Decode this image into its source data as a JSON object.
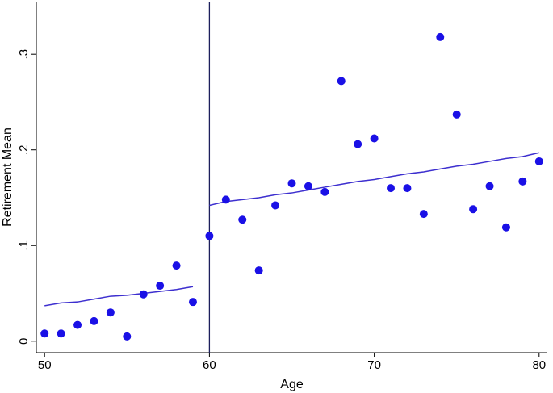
{
  "chart_data": {
    "type": "scatter",
    "xlabel": "Age",
    "ylabel": "Retirement Mean",
    "xlim": [
      49.5,
      80.5
    ],
    "ylim": [
      -0.012,
      0.355
    ],
    "xticks": [
      50,
      60,
      70,
      80
    ],
    "xtick_labels": [
      "50",
      "60",
      "70",
      "80"
    ],
    "yticks": [
      0,
      0.1,
      0.2,
      0.3
    ],
    "ytick_labels": [
      "0",
      ".1",
      ".2",
      ".3"
    ],
    "grid": false,
    "cutoff_line_x": 60,
    "points": {
      "x": [
        50,
        51,
        52,
        53,
        54,
        55,
        56,
        57,
        58,
        59,
        60,
        61,
        62,
        63,
        64,
        65,
        66,
        67,
        68,
        69,
        70,
        71,
        72,
        73,
        74,
        75,
        76,
        77,
        78,
        79,
        80
      ],
      "y": [
        0.008,
        0.008,
        0.017,
        0.021,
        0.03,
        0.005,
        0.049,
        0.058,
        0.079,
        0.041,
        0.11,
        0.148,
        0.127,
        0.074,
        0.142,
        0.165,
        0.162,
        0.156,
        0.272,
        0.206,
        0.212,
        0.16,
        0.16,
        0.133,
        0.318,
        0.237,
        0.138,
        0.162,
        0.119,
        0.167,
        0.188
      ]
    },
    "fit_lines": [
      {
        "x": [
          50,
          51,
          52,
          53,
          54,
          55,
          56,
          57,
          58,
          59
        ],
        "y": [
          0.037,
          0.04,
          0.041,
          0.044,
          0.047,
          0.048,
          0.05,
          0.052,
          0.054,
          0.057
        ]
      },
      {
        "x": [
          60,
          61,
          62,
          63,
          64,
          65,
          66,
          67,
          68,
          69,
          70,
          71,
          72,
          73,
          74,
          75,
          76,
          77,
          78,
          79,
          80
        ],
        "y": [
          0.142,
          0.146,
          0.148,
          0.15,
          0.153,
          0.155,
          0.158,
          0.161,
          0.164,
          0.167,
          0.169,
          0.172,
          0.175,
          0.177,
          0.18,
          0.183,
          0.185,
          0.188,
          0.191,
          0.193,
          0.197
        ]
      }
    ],
    "colors": {
      "points": "#1a10e6",
      "fit_line": "#3d2fcf",
      "cutoff_line": "#1c1f5c",
      "axis": "#000000"
    }
  }
}
